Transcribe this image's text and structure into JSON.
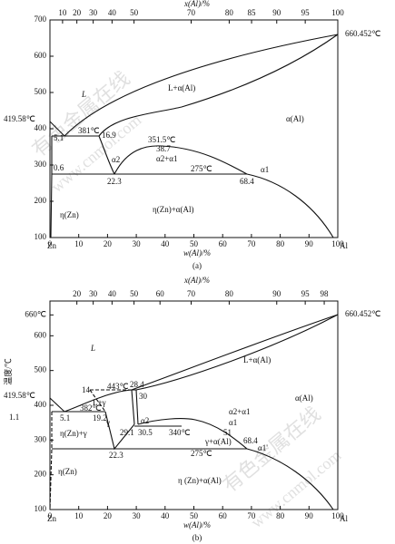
{
  "watermark": {
    "name": "有色金属在线",
    "url": "www.cnmol.com"
  },
  "figures": [
    {
      "caption": "(a)",
      "x_axis_top": {
        "label": "x(Al)/%",
        "ticks": [
          10,
          20,
          30,
          40,
          50,
          70,
          80,
          85,
          90,
          95,
          100
        ]
      },
      "x_axis_bottom": {
        "label": "w(Al)/%",
        "xlim": [
          0,
          100
        ],
        "ticks": [
          0,
          10,
          20,
          30,
          40,
          50,
          60,
          70,
          80,
          90,
          100
        ]
      },
      "y_axis": {
        "ylim": [
          100,
          700
        ],
        "ticks": [
          100,
          200,
          300,
          400,
          500,
          600,
          700
        ]
      },
      "end_labels": [
        "Zn",
        "Al"
      ],
      "annotations": [
        "419.58℃",
        "660.452℃",
        "L",
        "L+α(Al)",
        "α(Al)",
        "5.1",
        "381℃",
        "16.9",
        "351.5℃",
        "38.7",
        "α2",
        "α2+α1",
        "275℃",
        "α1",
        "0.6",
        "22.3",
        "68.4",
        "η(Zn)+α(Al)",
        "η(Zn)"
      ]
    },
    {
      "caption": "(b)",
      "x_axis_top": {
        "label": "x(Al)/%",
        "ticks": [
          20,
          30,
          40,
          50,
          60,
          70,
          80,
          90,
          95,
          98
        ]
      },
      "x_axis_bottom": {
        "label": "w(Al)/%",
        "xlim": [
          0,
          100
        ],
        "ticks": [
          0,
          10,
          20,
          30,
          40,
          50,
          60,
          70,
          80,
          90,
          100
        ]
      },
      "y_axis": {
        "label": "温度/℃",
        "ylim": [
          100,
          700
        ],
        "ticks": [
          100,
          200,
          300,
          400,
          500,
          600,
          {
            "value": 660,
            "label": "660℃"
          }
        ]
      },
      "end_labels": [
        "Zn",
        "Al"
      ],
      "annotations": [
        "419.58℃",
        "1.1",
        "660.452℃",
        "L",
        "L+γ",
        "14",
        "443℃",
        "28.4",
        "30",
        "L+α(Al)",
        "α(Al)",
        "382℃",
        "5.1",
        "19.2",
        "γ",
        "29.1",
        "α2",
        "α2+α1",
        "α1",
        "30.5",
        "340℃",
        "51",
        "η(Zn)+γ",
        "22.3",
        "γ+α(Al)",
        "275℃",
        "68.4",
        "α1'",
        "η(Zn)",
        "η (Zn)+α(Al)"
      ]
    }
  ]
}
